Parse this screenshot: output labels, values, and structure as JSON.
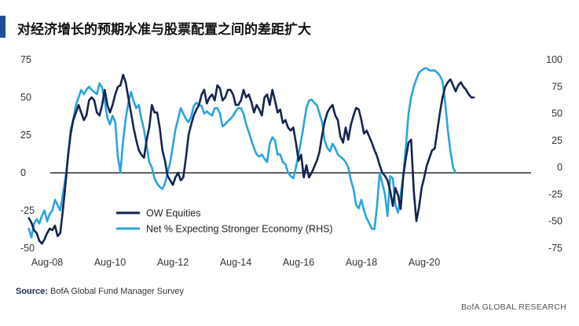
{
  "header": {
    "title": "对经济增长的预期水准与股票配置之间的差距扩大"
  },
  "footer": {
    "source_label": "Source:",
    "source_text": "BofA Global Fund Manager Survey",
    "brand": "BofA GLOBAL RESEARCH"
  },
  "colors": {
    "accent_bar": "#1f4e96",
    "ow_equities": "#14244f",
    "net_expecting": "#2aa3dd",
    "zero_line": "#000000"
  },
  "chart_data": {
    "type": "line",
    "title": "对经济增长的预期水准与股票配置之间的差距扩大",
    "x_start": "2008-01",
    "x_step": "month",
    "x_ticks": [
      {
        "label": "Aug-08",
        "date": "2008-08"
      },
      {
        "label": "Aug-10",
        "date": "2010-08"
      },
      {
        "label": "Aug-12",
        "date": "2012-08"
      },
      {
        "label": "Aug-14",
        "date": "2014-08"
      },
      {
        "label": "Aug-16",
        "date": "2016-08"
      },
      {
        "label": "Aug-18",
        "date": "2018-08"
      },
      {
        "label": "Aug-20",
        "date": "2020-08"
      }
    ],
    "y_left": {
      "range": [
        -50,
        75
      ],
      "ticks": [
        75,
        50,
        25,
        0,
        -25,
        -50
      ]
    },
    "y_right": {
      "range": [
        -75,
        100
      ],
      "ticks": [
        100,
        75,
        50,
        25,
        0,
        -25,
        -50,
        -75
      ]
    },
    "zero_line": true,
    "grid": false,
    "legend": {
      "placement": "bottom-left"
    },
    "series": [
      {
        "name": "OW Equities",
        "axis": "left",
        "values": [
          -30,
          -33,
          -38,
          -40,
          -45,
          -47,
          -44,
          -40,
          -37,
          -38,
          -35,
          -42,
          -40,
          -25,
          -8,
          12,
          26,
          35,
          40,
          45,
          40,
          35,
          38,
          48,
          50,
          48,
          40,
          38,
          45,
          55,
          45,
          40,
          45,
          52,
          57,
          58,
          65,
          60,
          50,
          40,
          30,
          22,
          15,
          12,
          10,
          22,
          30,
          45,
          40,
          40,
          30,
          15,
          8,
          -2,
          -5,
          -8,
          -3,
          0,
          -5,
          -3,
          10,
          25,
          32,
          38,
          42,
          45,
          52,
          55,
          46,
          50,
          52,
          48,
          58,
          56,
          48,
          50,
          55,
          55,
          52,
          45,
          45,
          48,
          55,
          50,
          52,
          47,
          40,
          45,
          42,
          38,
          50,
          52,
          45,
          55,
          48,
          40,
          42,
          33,
          35,
          30,
          28,
          30,
          20,
          8,
          12,
          -3,
          5,
          -3,
          0,
          4,
          8,
          14,
          25,
          34,
          40,
          43,
          45,
          38,
          35,
          24,
          20,
          30,
          22,
          32,
          38,
          43,
          42,
          35,
          26,
          28,
          24,
          20,
          15,
          11,
          5,
          0,
          -2,
          -5,
          -12,
          -22,
          -10,
          -15,
          -24,
          -2,
          10,
          20,
          22,
          -12,
          -32,
          -23,
          -10,
          -3,
          5,
          10,
          15,
          16,
          28,
          40,
          50,
          57,
          60,
          62,
          58,
          54,
          58,
          60,
          57,
          55,
          52,
          50,
          50
        ]
      },
      {
        "name": "Net % Expecting Stronger Economy (RHS)",
        "axis": "right",
        "values": [
          -57,
          -65,
          -52,
          -48,
          -52,
          -45,
          -40,
          -50,
          -43,
          -40,
          -30,
          -35,
          -40,
          -25,
          -10,
          10,
          35,
          45,
          58,
          65,
          72,
          68,
          72,
          75,
          72,
          70,
          68,
          78,
          74,
          62,
          46,
          40,
          48,
          42,
          10,
          -5,
          25,
          45,
          60,
          70,
          62,
          55,
          58,
          45,
          35,
          20,
          5,
          0,
          -10,
          -15,
          -18,
          -20,
          -15,
          -5,
          5,
          20,
          35,
          45,
          55,
          50,
          45,
          42,
          47,
          57,
          60,
          58,
          57,
          50,
          52,
          50,
          48,
          55,
          55,
          50,
          38,
          40,
          43,
          45,
          48,
          52,
          55,
          55,
          50,
          40,
          33,
          25,
          18,
          12,
          10,
          12,
          8,
          5,
          22,
          28,
          25,
          12,
          12,
          5,
          3,
          -5,
          -8,
          -10,
          0,
          12,
          25,
          40,
          55,
          62,
          63,
          60,
          58,
          50,
          42,
          25,
          18,
          15,
          22,
          18,
          12,
          10,
          8,
          5,
          0,
          -12,
          -20,
          -35,
          -38,
          -30,
          -40,
          -47,
          -52,
          -57,
          -57,
          -35,
          -5,
          -15,
          -25,
          -45,
          -8,
          -10,
          -35,
          -42,
          -25,
          -8,
          20,
          50,
          65,
          75,
          82,
          88,
          90,
          92,
          92,
          90,
          90,
          90,
          88,
          85,
          80,
          60,
          35,
          15,
          0,
          -5
        ]
      }
    ]
  }
}
